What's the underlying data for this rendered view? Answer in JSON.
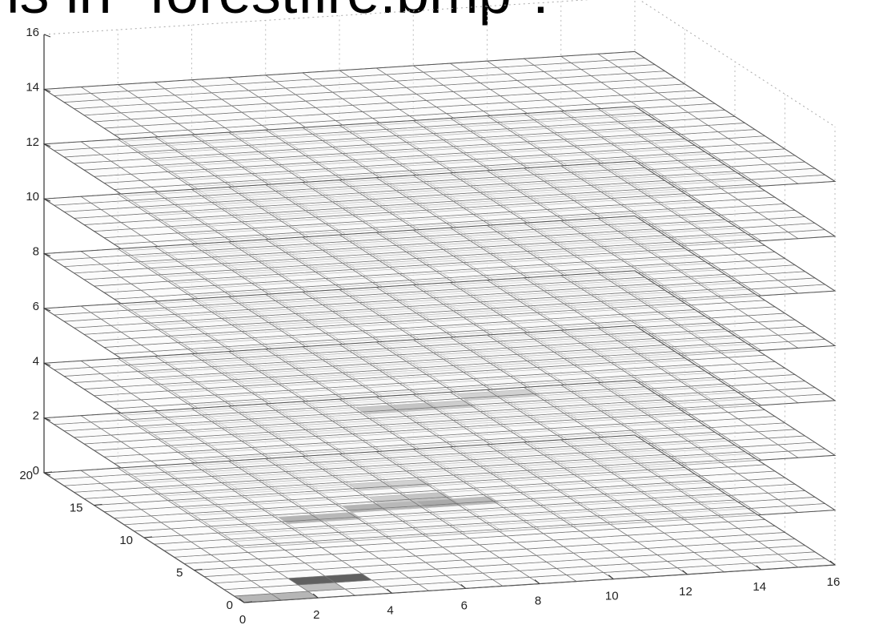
{
  "title": "ls in \"forestfire.bmp\":",
  "chart_data": {
    "type": "3d-stacked-surface",
    "title": "",
    "xlabel": "",
    "ylabel": "",
    "zlabel": "",
    "xlim": [
      0,
      16
    ],
    "ylim": [
      0,
      20
    ],
    "zlim": [
      0,
      16
    ],
    "x_ticks": [
      "0",
      "2",
      "4",
      "6",
      "8",
      "10",
      "12",
      "14",
      "16"
    ],
    "y_ticks": [
      "0",
      "5",
      "10",
      "15",
      "20"
    ],
    "z_ticks": [
      "0",
      "2",
      "4",
      "6",
      "8",
      "10",
      "12",
      "14",
      "16"
    ],
    "grid": true,
    "grid_cells": {
      "nx": 16,
      "ny": 20
    },
    "layer_levels": [
      0,
      2,
      4,
      6,
      8,
      10,
      12,
      14
    ],
    "dark_cells": [
      {
        "layer": 0,
        "x": 0,
        "y": 0,
        "shade": 0.35
      },
      {
        "layer": 0,
        "x": 1,
        "y": 0,
        "shade": 0.35
      },
      {
        "layer": 0,
        "x": 2,
        "y": 2,
        "shade": 0.8
      },
      {
        "layer": 0,
        "x": 3,
        "y": 2,
        "shade": 0.8
      },
      {
        "layer": 0,
        "x": 2,
        "y": 1,
        "shade": 0.3
      },
      {
        "layer": 2,
        "x": 2,
        "y": 3,
        "shade": 0.8
      },
      {
        "layer": 2,
        "x": 3,
        "y": 3,
        "shade": 0.75
      },
      {
        "layer": 2,
        "x": 4,
        "y": 4,
        "shade": 0.8
      },
      {
        "layer": 2,
        "x": 5,
        "y": 4,
        "shade": 0.75
      },
      {
        "layer": 2,
        "x": 6,
        "y": 4,
        "shade": 0.9
      },
      {
        "layer": 2,
        "x": 7,
        "y": 4,
        "shade": 0.7
      },
      {
        "layer": 2,
        "x": 5,
        "y": 5,
        "shade": 0.5
      },
      {
        "layer": 2,
        "x": 6,
        "y": 5,
        "shade": 0.6
      },
      {
        "layer": 2,
        "x": 5,
        "y": 7,
        "shade": 0.45
      },
      {
        "layer": 2,
        "x": 6,
        "y": 7,
        "shade": 0.45
      },
      {
        "layer": 4,
        "x": 6,
        "y": 10,
        "shade": 0.55
      },
      {
        "layer": 4,
        "x": 7,
        "y": 10,
        "shade": 0.6
      },
      {
        "layer": 4,
        "x": 8,
        "y": 10,
        "shade": 0.5
      },
      {
        "layer": 4,
        "x": 9,
        "y": 11,
        "shade": 0.45
      },
      {
        "layer": 4,
        "x": 10,
        "y": 11,
        "shade": 0.45
      }
    ]
  }
}
